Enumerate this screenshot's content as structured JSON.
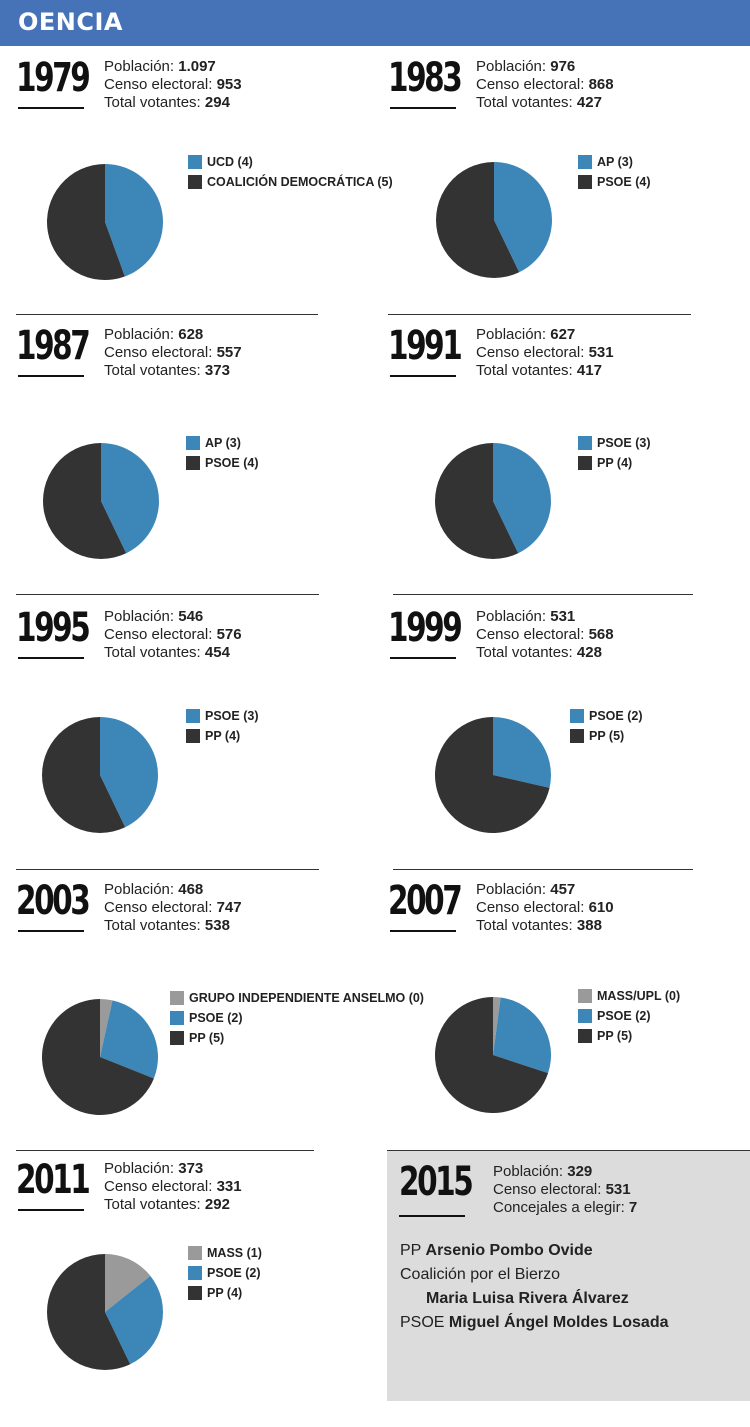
{
  "header": {
    "title": "OENCIA"
  },
  "colors": {
    "blue": "#3d87b8",
    "dark": "#333333",
    "grey": "#9a9a9a",
    "header": "#4672b8"
  },
  "labels": {
    "poblacion": "Población:",
    "censo": "Censo electoral:",
    "votantes": "Total votantes:",
    "concejales": "Concejales a elegir:"
  },
  "chart_data": [
    {
      "type": "pie",
      "year": "1979",
      "poblacion": "1.097",
      "censo": "953",
      "votantes": "294",
      "slices": [
        {
          "label": "UCD (4)",
          "value": 4,
          "color": "#3d87b8"
        },
        {
          "label": "COALICIÓN DEMOCRÁTICA (5)",
          "value": 5,
          "color": "#333333"
        }
      ]
    },
    {
      "type": "pie",
      "year": "1983",
      "poblacion": "976",
      "censo": "868",
      "votantes": "427",
      "slices": [
        {
          "label": "AP (3)",
          "value": 3,
          "color": "#3d87b8"
        },
        {
          "label": "PSOE (4)",
          "value": 4,
          "color": "#333333"
        }
      ]
    },
    {
      "type": "pie",
      "year": "1987",
      "poblacion": "628",
      "censo": "557",
      "votantes": "373",
      "slices": [
        {
          "label": "AP (3)",
          "value": 3,
          "color": "#3d87b8"
        },
        {
          "label": "PSOE (4)",
          "value": 4,
          "color": "#333333"
        }
      ]
    },
    {
      "type": "pie",
      "year": "1991",
      "poblacion": "627",
      "censo": "531",
      "votantes": "417",
      "slices": [
        {
          "label": "PSOE (3)",
          "value": 3,
          "color": "#3d87b8"
        },
        {
          "label": "PP (4)",
          "value": 4,
          "color": "#333333"
        }
      ]
    },
    {
      "type": "pie",
      "year": "1995",
      "poblacion": "546",
      "censo": "576",
      "votantes": "454",
      "slices": [
        {
          "label": "PSOE (3)",
          "value": 3,
          "color": "#3d87b8"
        },
        {
          "label": "PP (4)",
          "value": 4,
          "color": "#333333"
        }
      ]
    },
    {
      "type": "pie",
      "year": "1999",
      "poblacion": "531",
      "censo": "568",
      "votantes": "428",
      "slices": [
        {
          "label": "PSOE (2)",
          "value": 2,
          "color": "#3d87b8"
        },
        {
          "label": "PP (5)",
          "value": 5,
          "color": "#333333"
        }
      ]
    },
    {
      "type": "pie",
      "year": "2003",
      "poblacion": "468",
      "censo": "747",
      "votantes": "538",
      "slices": [
        {
          "label": "GRUPO INDEPENDIENTE ANSELMO (0)",
          "value": 0.25,
          "color": "#9a9a9a"
        },
        {
          "label": "PSOE (2)",
          "value": 2,
          "color": "#3d87b8"
        },
        {
          "label": "PP (5)",
          "value": 5,
          "color": "#333333"
        }
      ]
    },
    {
      "type": "pie",
      "year": "2007",
      "poblacion": "457",
      "censo": "610",
      "votantes": "388",
      "slices": [
        {
          "label": "MASS/UPL (0)",
          "value": 0.15,
          "color": "#9a9a9a"
        },
        {
          "label": "PSOE (2)",
          "value": 2,
          "color": "#3d87b8"
        },
        {
          "label": "PP (5)",
          "value": 5,
          "color": "#333333"
        }
      ]
    },
    {
      "type": "pie",
      "year": "2011",
      "poblacion": "373",
      "censo": "331",
      "votantes": "292",
      "slices": [
        {
          "label": "MASS (1)",
          "value": 1,
          "color": "#9a9a9a"
        },
        {
          "label": "PSOE (2)",
          "value": 2,
          "color": "#3d87b8"
        },
        {
          "label": "PP (4)",
          "value": 4,
          "color": "#333333"
        }
      ]
    }
  ],
  "y2015": {
    "year": "2015",
    "poblacion": "329",
    "censo": "531",
    "concejales": "7",
    "candidates": [
      {
        "party": "PP",
        "name": "Arsenio Pombo Ovide"
      },
      {
        "party": "Coalición por el Bierzo",
        "name": "Maria Luisa Rivera Álvarez"
      },
      {
        "party": "PSOE",
        "name": "Miguel Ángel Moldes Losada"
      }
    ]
  }
}
